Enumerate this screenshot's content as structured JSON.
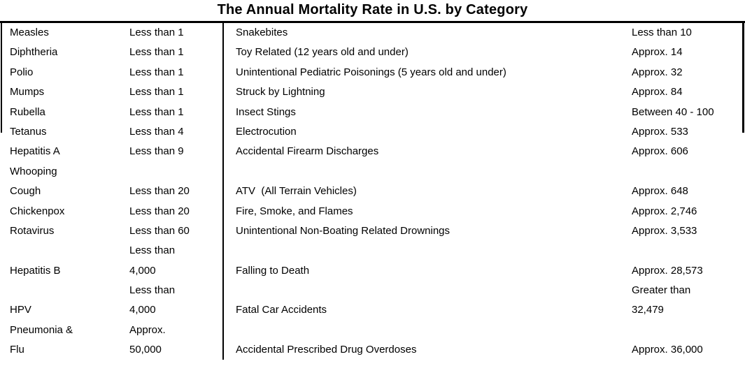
{
  "title": "The Annual Mortality Rate in U.S. by Category",
  "colors": {
    "background": "#ffffff",
    "text": "#000000",
    "rule": "#000000"
  },
  "chart_data": {
    "type": "table",
    "title": "The Annual Mortality Rate in U.S. by Category",
    "left_table": [
      {
        "category": "Measles",
        "rate": "Less than 1"
      },
      {
        "category": "Diphtheria",
        "rate": "Less than 1"
      },
      {
        "category": "Polio",
        "rate": "Less than 1"
      },
      {
        "category": "Mumps",
        "rate": "Less than 1"
      },
      {
        "category": "Rubella",
        "rate": "Less than 1"
      },
      {
        "category": "Tetanus",
        "rate": "Less than 4"
      },
      {
        "category": "Hepatitis A",
        "rate": "Less than 9"
      },
      {
        "category": "Whooping Cough",
        "rate": "Less than 20"
      },
      {
        "category": "Chickenpox",
        "rate": "Less than 20"
      },
      {
        "category": "Rotavirus",
        "rate": "Less than 60"
      },
      {
        "category": "Hepatitis B",
        "rate": "Less than 4,000"
      },
      {
        "category": "HPV",
        "rate": "Less than 4,000"
      },
      {
        "category": "Pneumonia & Flu",
        "rate": "Approx. 50,000"
      }
    ],
    "right_table": [
      {
        "category": "Snakebites",
        "rate": "Less than 10"
      },
      {
        "category": "Toy Related (12 years old and under)",
        "rate": "Approx. 14"
      },
      {
        "category": "Unintentional Pediatric Poisonings (5 years old and under)",
        "rate": "Approx. 32"
      },
      {
        "category": "Struck by Lightning",
        "rate": "Approx. 84"
      },
      {
        "category": "Insect Stings",
        "rate": "Between 40 - 100"
      },
      {
        "category": "Electrocution",
        "rate": "Approx. 533"
      },
      {
        "category": "Accidental Firearm Discharges",
        "rate": "Approx. 606"
      },
      {
        "category": "ATV  (All Terrain Vehicles)",
        "rate": "Approx. 648"
      },
      {
        "category": "Fire, Smoke, and Flames",
        "rate": "Approx. 2,746"
      },
      {
        "category": "Unintentional Non-Boating Related Drownings",
        "rate": "Approx. 3,533"
      },
      {
        "category": "Falling to Death",
        "rate": "Approx. 28,573"
      },
      {
        "category": "Fatal Car Accidents",
        "rate": "Greater than 32,479"
      },
      {
        "category": "Accidental Prescribed Drug Overdoses",
        "rate": "Approx. 36,000"
      }
    ]
  },
  "layout_rows": [
    {
      "l": "Measles",
      "lv": "Less than 1",
      "r": "Snakebites",
      "rv": "Less than 10"
    },
    {
      "l": "Diphtheria",
      "lv": "Less than 1",
      "r": "Toy Related (12 years old and under)",
      "rv": "Approx. 14"
    },
    {
      "l": "Polio",
      "lv": "Less than 1",
      "r": "Unintentional Pediatric Poisonings (5 years old and under)",
      "rv": "Approx. 32"
    },
    {
      "l": "Mumps",
      "lv": "Less than 1",
      "r": "Struck by Lightning",
      "rv": "Approx. 84"
    },
    {
      "l": "Rubella",
      "lv": "Less than 1",
      "r": "Insect Stings",
      "rv": "Between 40 - 100"
    },
    {
      "l": "Tetanus",
      "lv": "Less than 4",
      "r": "Electrocution",
      "rv": "Approx. 533"
    },
    {
      "l": "Hepatitis A",
      "lv": "Less than 9",
      "r": "Accidental Firearm Discharges",
      "rv": "Approx. 606"
    },
    {
      "l": "Whooping",
      "lv": "",
      "r": "",
      "rv": ""
    },
    {
      "l": "Cough",
      "lv": "Less than 20",
      "r": "ATV  (All Terrain Vehicles)",
      "rv": "Approx. 648"
    },
    {
      "l": "Chickenpox",
      "lv": "Less than 20",
      "r": "Fire, Smoke, and Flames",
      "rv": "Approx. 2,746"
    },
    {
      "l": "Rotavirus",
      "lv": "Less than 60",
      "r": "Unintentional Non-Boating Related Drownings",
      "rv": "Approx. 3,533"
    },
    {
      "l": "",
      "lv": "Less than",
      "r": "",
      "rv": ""
    },
    {
      "l": "Hepatitis B",
      "lv": "4,000",
      "r": "Falling to Death",
      "rv": "Approx. 28,573"
    },
    {
      "l": "",
      "lv": "Less than",
      "r": "",
      "rv": "Greater than"
    },
    {
      "l": "HPV",
      "lv": "4,000",
      "r": "Fatal Car Accidents",
      "rv": "32,479"
    },
    {
      "l": "Pneumonia &",
      "lv": "Approx.",
      "r": "",
      "rv": ""
    },
    {
      "l": "Flu",
      "lv": "50,000",
      "r": "Accidental Prescribed Drug Overdoses",
      "rv": "Approx. 36,000"
    }
  ]
}
